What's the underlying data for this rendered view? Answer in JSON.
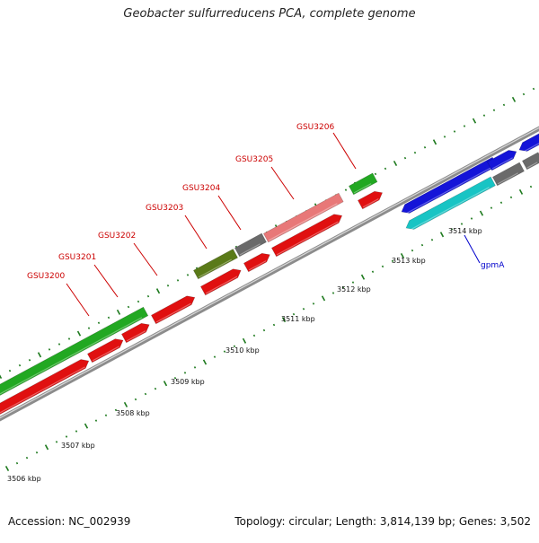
{
  "title": "Geobacter sulfurreducens PCA, complete genome",
  "footer": {
    "accession": "Accession: NC_002939",
    "summary": "Topology: circular; Length: 3,814,139 bp; Genes: 3,502"
  },
  "colors": {
    "forward_cds": "#e01010",
    "green_gene": "#22a822",
    "olive_gene": "#5a7a18",
    "gray_gene": "#6a6a6a",
    "pink_gene": "#e87878",
    "blue_gene": "#1414d8",
    "cyan_gene": "#18c4c4",
    "backbone": "#8c8c8c",
    "tick": "#1e7a1e",
    "red_label": "#cc0000",
    "blue_label": "#0000cc"
  },
  "gene_labels": [
    {
      "name": "GSU3200",
      "color": "red"
    },
    {
      "name": "GSU3201",
      "color": "red"
    },
    {
      "name": "GSU3202",
      "color": "red"
    },
    {
      "name": "GSU3203",
      "color": "red"
    },
    {
      "name": "GSU3204",
      "color": "red"
    },
    {
      "name": "GSU3205",
      "color": "red"
    },
    {
      "name": "GSU3206",
      "color": "red"
    },
    {
      "name": "gpmA",
      "color": "blue"
    }
  ],
  "kbp_labels": [
    "3506 kbp",
    "3507 kbp",
    "3508 kbp",
    "3509 kbp",
    "3510 kbp",
    "3511 kbp",
    "3512 kbp",
    "3513 kbp",
    "3514 kbp"
  ]
}
